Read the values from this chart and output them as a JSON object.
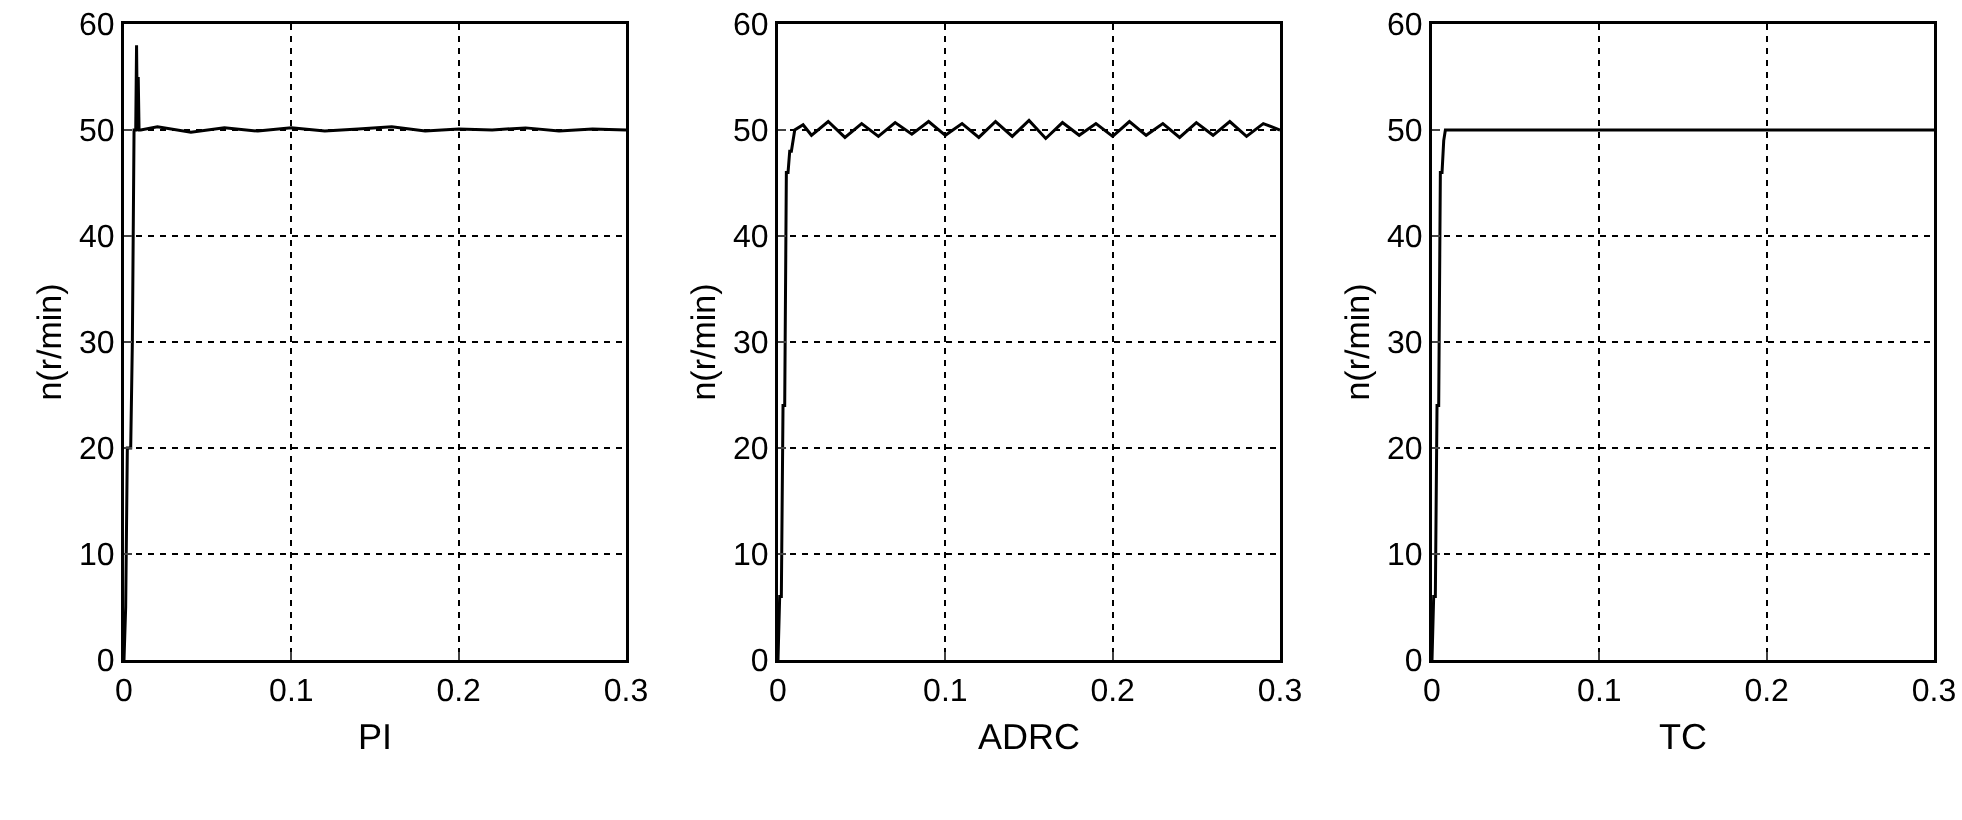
{
  "chart_data": [
    {
      "type": "line",
      "xlabel": "PI",
      "ylabel": "n(r/min)",
      "xlim": [
        0,
        0.3
      ],
      "ylim": [
        0,
        60
      ],
      "xticks": [
        0,
        0.1,
        0.2,
        0.3
      ],
      "yticks": [
        0,
        10,
        20,
        30,
        40,
        50,
        60
      ],
      "grid": true,
      "series": [
        {
          "color": "#000000",
          "x": [
            0,
            0.001,
            0.002,
            0.003,
            0.004,
            0.005,
            0.006,
            0.007,
            0.0075,
            0.008,
            0.0085,
            0.009,
            0.01,
            0.02,
            0.04,
            0.06,
            0.08,
            0.1,
            0.12,
            0.14,
            0.16,
            0.18,
            0.2,
            0.22,
            0.24,
            0.26,
            0.28,
            0.3
          ],
          "values": [
            0,
            5,
            20,
            20,
            20,
            30,
            50,
            50,
            58,
            50,
            55,
            50,
            50,
            50.3,
            49.8,
            50.2,
            49.9,
            50.2,
            49.9,
            50.1,
            50.3,
            49.9,
            50.1,
            50,
            50.2,
            49.9,
            50.1,
            50
          ]
        }
      ]
    },
    {
      "type": "line",
      "xlabel": "ADRC",
      "ylabel": "n(r/min)",
      "xlim": [
        0,
        0.3
      ],
      "ylim": [
        0,
        60
      ],
      "xticks": [
        0,
        0.1,
        0.2,
        0.3
      ],
      "yticks": [
        0,
        10,
        20,
        30,
        40,
        50,
        60
      ],
      "grid": true,
      "series": [
        {
          "color": "#000000",
          "x": [
            0,
            0.001,
            0.002,
            0.003,
            0.004,
            0.005,
            0.006,
            0.007,
            0.008,
            0.01,
            0.015,
            0.02,
            0.03,
            0.04,
            0.05,
            0.06,
            0.07,
            0.08,
            0.09,
            0.1,
            0.11,
            0.12,
            0.13,
            0.14,
            0.15,
            0.16,
            0.17,
            0.18,
            0.19,
            0.2,
            0.21,
            0.22,
            0.23,
            0.24,
            0.25,
            0.26,
            0.27,
            0.28,
            0.29,
            0.3
          ],
          "values": [
            0,
            6,
            6,
            24,
            24,
            46,
            46,
            48,
            48,
            50,
            50.5,
            49.5,
            50.8,
            49.3,
            50.6,
            49.4,
            50.7,
            49.6,
            50.8,
            49.5,
            50.6,
            49.3,
            50.8,
            49.4,
            50.9,
            49.2,
            50.7,
            49.5,
            50.6,
            49.4,
            50.8,
            49.5,
            50.6,
            49.3,
            50.7,
            49.5,
            50.8,
            49.4,
            50.6,
            50
          ]
        }
      ]
    },
    {
      "type": "line",
      "xlabel": "TC",
      "ylabel": "n(r/min)",
      "xlim": [
        0,
        0.3
      ],
      "ylim": [
        0,
        60
      ],
      "xticks": [
        0,
        0.1,
        0.2,
        0.3
      ],
      "yticks": [
        0,
        10,
        20,
        30,
        40,
        50,
        60
      ],
      "grid": true,
      "series": [
        {
          "color": "#000000",
          "x": [
            0,
            0.001,
            0.002,
            0.003,
            0.004,
            0.005,
            0.006,
            0.007,
            0.008,
            0.01,
            0.05,
            0.1,
            0.15,
            0.2,
            0.25,
            0.3
          ],
          "values": [
            0,
            6,
            6,
            24,
            24,
            46,
            46,
            49,
            50,
            50,
            50,
            50,
            50,
            50,
            50,
            50
          ]
        }
      ]
    }
  ]
}
